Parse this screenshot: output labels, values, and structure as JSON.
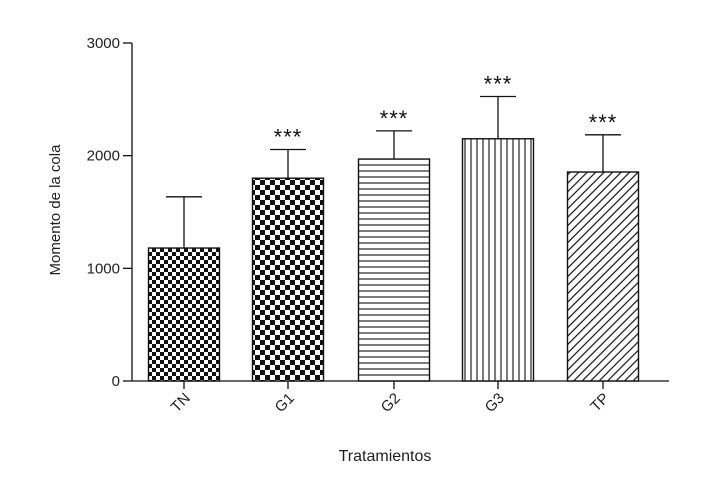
{
  "chart_data": {
    "type": "bar",
    "categories": [
      "TN",
      "G1",
      "G2",
      "G3",
      "TP"
    ],
    "values": [
      1180,
      1800,
      1970,
      2150,
      1855
    ],
    "error_upper": [
      1635,
      2055,
      2220,
      2525,
      2185
    ],
    "annotations": [
      "",
      "***",
      "***",
      "***",
      "***"
    ],
    "patterns": [
      "checker-fine",
      "checker-coarse",
      "horizontal-lines",
      "vertical-lines",
      "diagonal-lines"
    ],
    "xlabel": "Tratamientos",
    "ylabel": "Momento de la cola",
    "ylim": [
      0,
      3000
    ],
    "yticks": [
      0,
      1000,
      2000,
      3000
    ],
    "grid": false,
    "legend": "none",
    "colors": {
      "ink": "#111111",
      "text": "#222222",
      "background": "#ffffff"
    }
  }
}
